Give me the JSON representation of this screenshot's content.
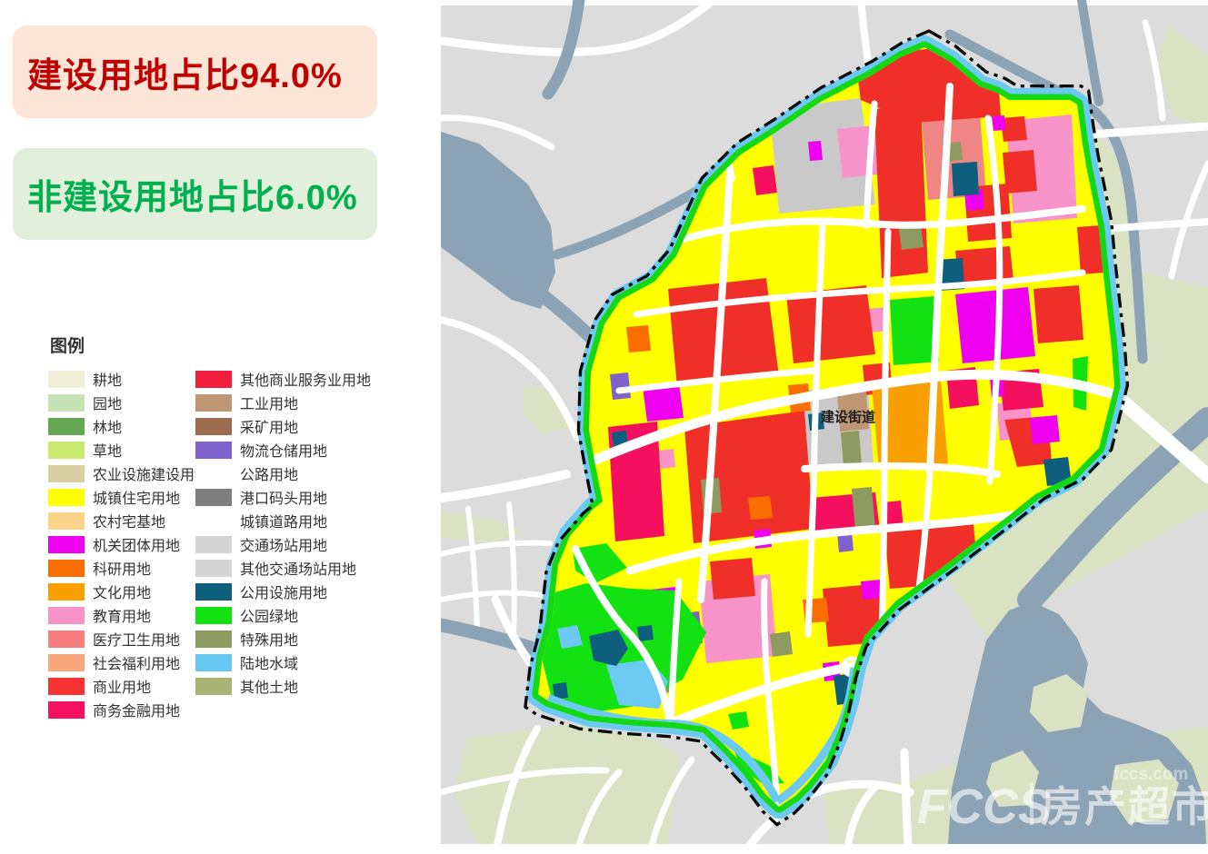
{
  "banners": {
    "construction": {
      "label": "建设用地占比94.0%",
      "text_color": "#c00000",
      "bg_color": "#fbe5d6"
    },
    "non_construction": {
      "label": "非建设用地占比6.0%",
      "text_color": "#00b050",
      "bg_color": "#e2efda"
    }
  },
  "legend": {
    "title": "图例",
    "left_column": [
      {
        "label": "耕地",
        "color": "#f1efd7"
      },
      {
        "label": "园地",
        "color": "#c6e3b5"
      },
      {
        "label": "林地",
        "color": "#64a854"
      },
      {
        "label": "草地",
        "color": "#c8ea6e"
      },
      {
        "label": "农业设施建设用地",
        "color": "#d8d0a0"
      },
      {
        "label": "城镇住宅用地",
        "color": "#ffff00"
      },
      {
        "label": "农村宅基地",
        "color": "#fbd389"
      },
      {
        "label": "机关团体用地",
        "color": "#f000f0"
      },
      {
        "label": "科研用地",
        "color": "#fa6e00"
      },
      {
        "label": "文化用地",
        "color": "#f9a000"
      },
      {
        "label": "教育用地",
        "color": "#f793c8"
      },
      {
        "label": "医疗卫生用地",
        "color": "#f97d7d"
      },
      {
        "label": "社会福利用地",
        "color": "#f9a77d"
      },
      {
        "label": "商业用地",
        "color": "#f63232"
      },
      {
        "label": "商务金融用地",
        "color": "#f51060"
      }
    ],
    "right_column": [
      {
        "label": "其他商业服务业用地",
        "color": "#f2203f"
      },
      {
        "label": "工业用地",
        "color": "#bf9673"
      },
      {
        "label": "采矿用地",
        "color": "#9c6b50"
      },
      {
        "label": "物流仓储用地",
        "color": "#7f62cc"
      },
      {
        "label": "公路用地",
        "color": "#ffffff"
      },
      {
        "label": "港口码头用地",
        "color": "#7f7f7f"
      },
      {
        "label": "城镇道路用地",
        "color": "#ffffff"
      },
      {
        "label": "交通场站用地",
        "color": "#d4d4d4"
      },
      {
        "label": "其他交通场站用地",
        "color": "#d4d4d4"
      },
      {
        "label": "公用设施用地",
        "color": "#0e5f7d"
      },
      {
        "label": "公园绿地",
        "color": "#12e212"
      },
      {
        "label": "特殊用地",
        "color": "#8d9a60"
      },
      {
        "label": "陆地水域",
        "color": "#66c7f0"
      },
      {
        "label": "其他土地",
        "color": "#a9b475"
      }
    ]
  },
  "map": {
    "district_label": "建设街道",
    "watermark": {
      "logo": "FCCS",
      "brand": "房产超市",
      "domain": "fccs.com"
    },
    "colors": {
      "outside_background": "#dcdcdc",
      "road": "#ffffff",
      "water_river": "#8ba3b4",
      "vegetation": "#d9e3c3",
      "boundary_water": "#6cc9f2",
      "green_belt": "#13d813",
      "residential_yellow": "#ffff00",
      "boundary_line": "#0a0a0a"
    }
  }
}
